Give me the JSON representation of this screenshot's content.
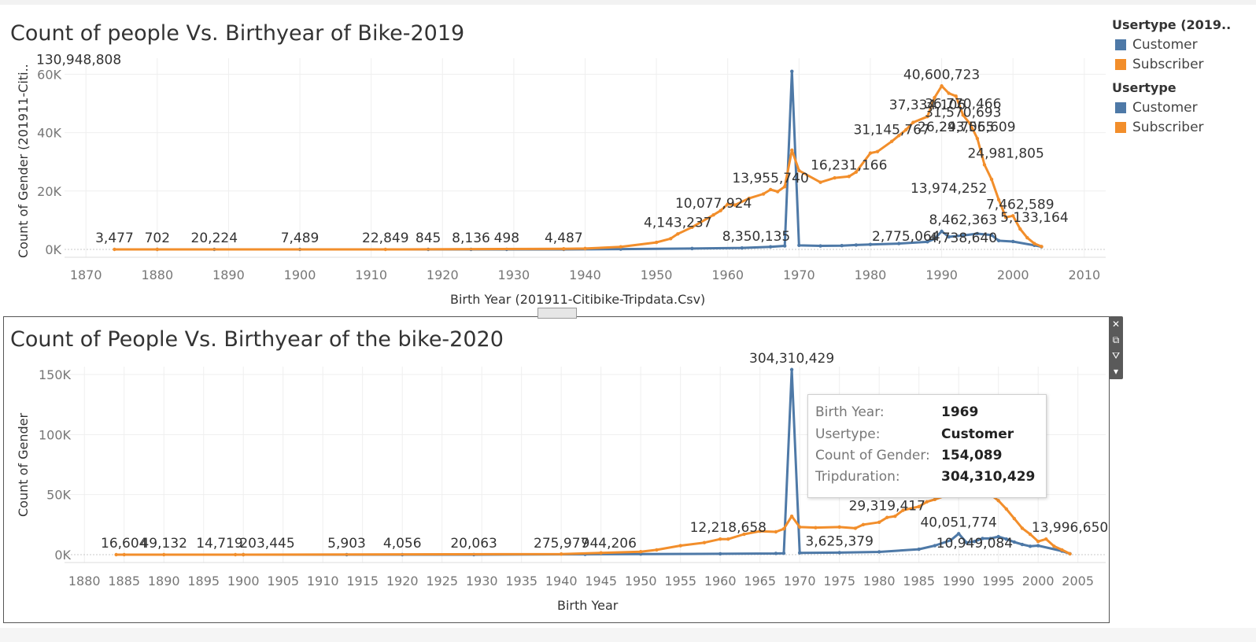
{
  "chart_data": [
    {
      "type": "line",
      "title": "Count of people Vs. Birthyear of Bike-2019",
      "xlabel": "Birth Year (201911-Citibike-Tripdata.Csv)",
      "ylabel": "Count of Gender (201911-Citi..",
      "xlim": [
        1867,
        2013
      ],
      "ylim": [
        0,
        62000
      ],
      "x_ticks": [
        "1870",
        "1880",
        "1890",
        "1900",
        "1910",
        "1920",
        "1930",
        "1940",
        "1950",
        "1960",
        "1970",
        "1980",
        "1990",
        "2000",
        "2010"
      ],
      "y_ticks": [
        {
          "v": 0,
          "label": "0K"
        },
        {
          "v": 20000,
          "label": "20K"
        },
        {
          "v": 40000,
          "label": "40K"
        },
        {
          "v": 60000,
          "label": "60K"
        }
      ],
      "series": [
        {
          "name": "Customer",
          "color": "#4e79a7",
          "x": [
            1880,
            1888,
            1900,
            1918,
            1924,
            1929,
            1937,
            1945,
            1955,
            1962,
            1966,
            1968,
            1969,
            1970,
            1973,
            1976,
            1978,
            1980,
            1984,
            1988,
            1989,
            1990,
            1991,
            1993,
            1995,
            1997,
            1998,
            2000,
            2003,
            2004
          ],
          "y": [
            0,
            0,
            0,
            0,
            0,
            0,
            0,
            100,
            300,
            500,
            900,
            1200,
            61000,
            1400,
            1200,
            1300,
            1500,
            1700,
            2000,
            2600,
            3600,
            6200,
            4300,
            4800,
            5400,
            4900,
            3000,
            2700,
            1400,
            900
          ]
        },
        {
          "name": "Subscriber",
          "color": "#f28e2b",
          "x": [
            1874,
            1880,
            1912,
            1937,
            1940,
            1945,
            1950,
            1952,
            1953,
            1955,
            1958,
            1959,
            1960,
            1961,
            1963,
            1965,
            1966,
            1967,
            1968,
            1969,
            1970,
            1973,
            1975,
            1977,
            1978,
            1980,
            1981,
            1983,
            1984,
            1985,
            1986,
            1988,
            1989,
            1990,
            1991,
            1992,
            1993,
            1994,
            1995,
            1996,
            1997,
            1998,
            1999,
            2000,
            2001,
            2002,
            2003,
            2004
          ],
          "y": [
            0,
            0,
            0,
            200,
            300,
            900,
            2400,
            3700,
            5300,
            7600,
            11800,
            13300,
            15500,
            15200,
            17500,
            19000,
            20500,
            19800,
            21500,
            34000,
            27000,
            23000,
            24500,
            25000,
            26500,
            33000,
            33500,
            37000,
            39000,
            41000,
            43500,
            45500,
            52000,
            56000,
            53500,
            52500,
            46000,
            43000,
            38000,
            29000,
            24000,
            17000,
            11000,
            11500,
            7000,
            4000,
            2000,
            1000
          ]
        }
      ],
      "labels": [
        {
          "x": 1869,
          "y": 61000,
          "text": "130,948,808"
        },
        {
          "x": 1874,
          "y": 0,
          "text": "3,477"
        },
        {
          "x": 1880,
          "y": 0,
          "text": "702"
        },
        {
          "x": 1888,
          "y": 0,
          "text": "20,224"
        },
        {
          "x": 1900,
          "y": 0,
          "text": "7,489"
        },
        {
          "x": 1912,
          "y": 0,
          "text": "22,849"
        },
        {
          "x": 1918,
          "y": 0,
          "text": "845"
        },
        {
          "x": 1924,
          "y": 0,
          "text": "8,136"
        },
        {
          "x": 1929,
          "y": 0,
          "text": "498"
        },
        {
          "x": 1937,
          "y": 0,
          "text": "4,487"
        },
        {
          "x": 1953,
          "y": 5300,
          "text": "4,143,237"
        },
        {
          "x": 1958,
          "y": 11800,
          "text": "10,077,924"
        },
        {
          "x": 1966,
          "y": 20500,
          "text": "13,955,740"
        },
        {
          "x": 1964,
          "y": 500,
          "text": "8,350,135"
        },
        {
          "x": 1983,
          "y": 37000,
          "text": "31,145,767"
        },
        {
          "x": 1985,
          "y": 500,
          "text": "2,775,064"
        },
        {
          "x": 1988,
          "y": 45500,
          "text": "37,334,106"
        },
        {
          "x": 1990,
          "y": 56000,
          "text": "40,600,723"
        },
        {
          "x": 1993,
          "y": 46000,
          "text": "36,770,466"
        },
        {
          "x": 1993,
          "y": 43000,
          "text": "31,570,693"
        },
        {
          "x": 1992,
          "y": 38000,
          "text": "26,243,065"
        },
        {
          "x": 1995,
          "y": 38000,
          "text": "29,755,609"
        },
        {
          "x": 1999,
          "y": 29000,
          "text": "24,981,805"
        },
        {
          "x": 1977,
          "y": 25000,
          "text": "16,231,166"
        },
        {
          "x": 1991,
          "y": 17000,
          "text": "13,974,252"
        },
        {
          "x": 1993,
          "y": 6200,
          "text": "8,462,363"
        },
        {
          "x": 2001,
          "y": 11500,
          "text": "7,462,589"
        },
        {
          "x": 2003,
          "y": 7000,
          "text": "5,133,164"
        },
        {
          "x": 1993,
          "y": 0,
          "text": "4,738,640"
        }
      ]
    },
    {
      "type": "line",
      "title": "Count of People Vs. Birthyear of the bike-2020",
      "xlabel": "Birth Year",
      "ylabel": "Count of Gender",
      "xlim": [
        1877.5,
        2008.5
      ],
      "ylim": [
        0,
        150000
      ],
      "x_ticks": [
        "1880",
        "1885",
        "1890",
        "1895",
        "1900",
        "1905",
        "1910",
        "1915",
        "1920",
        "1925",
        "1930",
        "1935",
        "1940",
        "1945",
        "1950",
        "1955",
        "1960",
        "1965",
        "1970",
        "1975",
        "1980",
        "1985",
        "1990",
        "1995",
        "2000",
        "2005"
      ],
      "y_ticks": [
        {
          "v": 0,
          "label": "0K"
        },
        {
          "v": 50000,
          "label": "50K"
        },
        {
          "v": 100000,
          "label": "100K"
        },
        {
          "v": 150000,
          "label": "150K"
        }
      ],
      "series": [
        {
          "name": "Customer",
          "color": "#4e79a7",
          "x": [
            1900,
            1913,
            1920,
            1929,
            1943,
            1950,
            1960,
            1967,
            1968,
            1969,
            1970,
            1975,
            1980,
            1985,
            1987,
            1989,
            1990,
            1991,
            1992,
            1993,
            1994,
            1995,
            1996,
            1997,
            1998,
            1999,
            2000,
            2003,
            2004
          ],
          "y": [
            0,
            0,
            0,
            0,
            300,
            500,
            700,
            1000,
            1200,
            154089,
            1500,
            1700,
            2300,
            4500,
            7500,
            12000,
            17500,
            10000,
            11000,
            13500,
            13500,
            15000,
            13000,
            10500,
            8500,
            7000,
            7500,
            3000,
            800
          ]
        },
        {
          "name": "Subscriber",
          "color": "#f28e2b",
          "x": [
            1884,
            1885,
            1890,
            1899,
            1900,
            1940,
            1945,
            1950,
            1952,
            1955,
            1958,
            1960,
            1961,
            1963,
            1965,
            1967,
            1968,
            1969,
            1970,
            1972,
            1975,
            1977,
            1978,
            1980,
            1981,
            1982,
            1983,
            1985,
            1986,
            1987,
            1990,
            1992,
            1994,
            1995,
            1996,
            1997,
            1998,
            1999,
            2000,
            2001,
            2002,
            2003,
            2004
          ],
          "y": [
            0,
            0,
            0,
            0,
            0,
            500,
            1500,
            2500,
            4000,
            7500,
            10000,
            13000,
            13000,
            17000,
            19500,
            19000,
            21500,
            32000,
            23000,
            22500,
            23000,
            22000,
            25000,
            27000,
            31000,
            32000,
            37000,
            40000,
            44000,
            46000,
            53000,
            55000,
            50000,
            45000,
            38000,
            30000,
            22000,
            17000,
            11000,
            13000,
            7000,
            4000,
            700
          ]
        }
      ],
      "labels": [
        {
          "x": 1969,
          "y": 154089,
          "text": "304,310,429"
        },
        {
          "x": 1885,
          "y": 0,
          "text": "16,604"
        },
        {
          "x": 1890,
          "y": 0,
          "text": "49,132"
        },
        {
          "x": 1897,
          "y": 0,
          "text": "14,719"
        },
        {
          "x": 1903,
          "y": 0,
          "text": "203,445"
        },
        {
          "x": 1913,
          "y": 0,
          "text": "5,903"
        },
        {
          "x": 1920,
          "y": 0,
          "text": "4,056"
        },
        {
          "x": 1929,
          "y": 0,
          "text": "20,063"
        },
        {
          "x": 1940,
          "y": 0,
          "text": "275,977"
        },
        {
          "x": 1946,
          "y": 0,
          "text": "944,206"
        },
        {
          "x": 1961,
          "y": 13000,
          "text": "12,218,658"
        },
        {
          "x": 1975,
          "y": 1700,
          "text": "3,625,379"
        },
        {
          "x": 1981,
          "y": 31000,
          "text": "29,319,417"
        },
        {
          "x": 1990,
          "y": 17500,
          "text": "40,051,774"
        },
        {
          "x": 1992,
          "y": 0,
          "text": "10,949,084"
        },
        {
          "x": 2004,
          "y": 13000,
          "text": "13,996,650"
        }
      ]
    }
  ],
  "legend": {
    "title1": "Usertype (2019..",
    "items1": [
      {
        "label": "Customer",
        "color": "#4e79a7"
      },
      {
        "label": "Subscriber",
        "color": "#f28e2b"
      }
    ],
    "title2": "Usertype",
    "items2": [
      {
        "label": "Customer",
        "color": "#4e79a7"
      },
      {
        "label": "Subscriber",
        "color": "#f28e2b"
      }
    ]
  },
  "tooltip": {
    "rows": [
      {
        "key": "Birth Year:",
        "value": "1969"
      },
      {
        "key": "Usertype:",
        "value": "Customer"
      },
      {
        "key": "Count of Gender:",
        "value": "154,089"
      },
      {
        "key": "Tripduration:",
        "value": "304,310,429"
      }
    ]
  }
}
